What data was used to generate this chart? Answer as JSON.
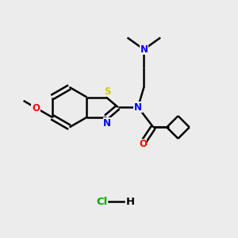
{
  "bg_color": "#ececec",
  "bond_color": "#000000",
  "bond_width": 1.8,
  "atom_colors": {
    "N": "#0000ff",
    "O": "#ff0000",
    "S": "#cccc00",
    "Cl": "#00cc00",
    "C": "#000000",
    "H": "#000000"
  },
  "font_size": 8.5,
  "hcl_color": "#00aa00"
}
